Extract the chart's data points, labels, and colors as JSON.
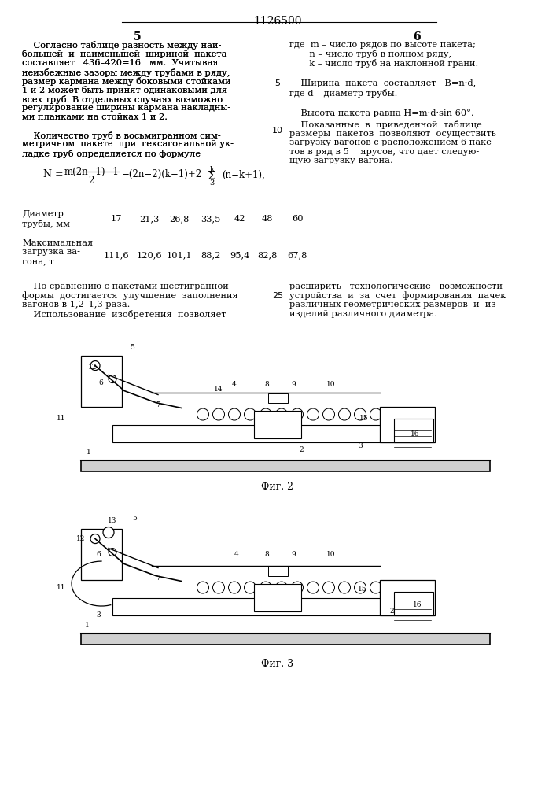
{
  "title": "1126500",
  "bg_color": "#ffffff",
  "text_color": "#000000",
  "left_col": [
    "    Согласно таблице разность между наи-",
    "большей  и  наименьшей  шириной  пакета",
    "составляет   436–420=16   мм.  Учитывая",
    "неизбежные зазоры между трубами в ряду,",
    "размер кармана между боковыми стойками",
    "1 и 2 может быть принят одинаковыми для",
    "всех труб. В отдельных случаях возможно",
    "регулирование ширины кармана накладны-",
    "ми планками на стойках 1 и 2.",
    "    Количество труб в восьмигранном сим-",
    "метричном  пакете  при  гексагональной ук-",
    "ладке труб определяется по формуле"
  ],
  "right_col_top": [
    "где  m – число рядов по высоте пакета;",
    "       n – число труб в полном ряду,",
    "       k – число труб на наклонной грани."
  ],
  "right_width_text": "    Ширина  пакета  составляет   B=n·d,",
  "right_width_text2": "где d – диаметр трубы.",
  "right_height_text": "    Высота пакета равна H=m·d·sin 60°.",
  "right_col_lower": [
    "    Показанные  в  приведенной  таблице",
    "размеры  пакетов  позволяют  осуществить",
    "загрузку вагонов с расположением 6 паке-",
    "тов в ряд в 5    ярусов, что дает следую-",
    "щую загрузку вагона."
  ],
  "diameters": [
    "17",
    "21,3",
    "26,8",
    "33,5",
    "42",
    "48",
    "60"
  ],
  "loads": [
    "111,6",
    "120,6",
    "101,1",
    "88,2",
    "95,4",
    "82,8",
    "67,8"
  ],
  "bottom_left": [
    "    По сравнению с пакетами шестигранной",
    "формы  достигается  улучшение  заполнения",
    "вагонов в 1,2–1,3 раза.",
    "    Использование  изобретения  позволяет"
  ],
  "bottom_right": [
    "расширить   технологические   возможности",
    "устройства  и  за  счет  формирования  пачек",
    "различных геометрических размеров  и  из",
    "изделий различного диаметра."
  ],
  "fig2_label": "Фиг. 2",
  "fig3_label": "Фиг. 3"
}
